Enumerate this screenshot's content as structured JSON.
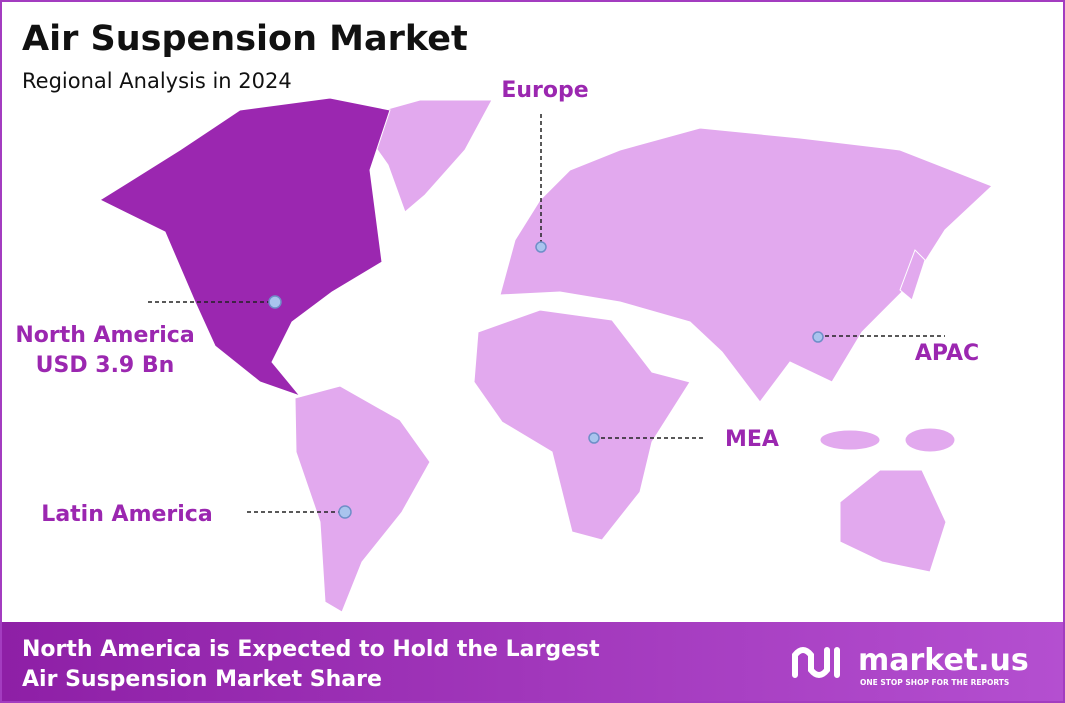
{
  "header": {
    "title": "Air Suspension Market",
    "subtitle": "Regional Analysis in 2024"
  },
  "regions": [
    {
      "label": "North America",
      "value_label": "USD 3.9 Bn"
    },
    {
      "label": "Europe"
    },
    {
      "label": "APAC"
    },
    {
      "label": "MEA"
    },
    {
      "label": "Latin America"
    }
  ],
  "footer": {
    "lines": [
      "North America is Expected to Hold the Largest",
      "Air Suspension Market Share"
    ],
    "logo": "market.us",
    "tagline": "ONE STOP SHOP FOR THE REPORTS"
  }
}
